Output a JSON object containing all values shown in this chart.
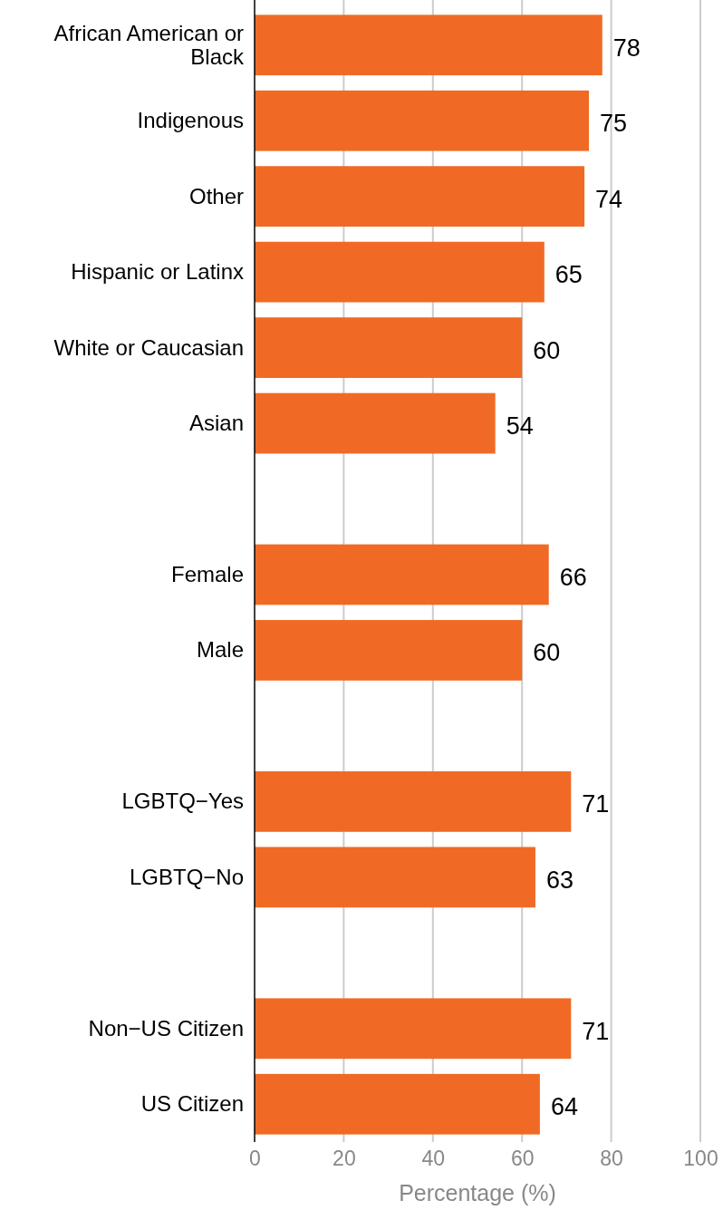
{
  "chart_data": {
    "type": "bar",
    "orientation": "horizontal",
    "xlabel": "Percentage (%)",
    "categories": [
      "African American or Black",
      "Indigenous",
      "Other",
      "Hispanic or Latinx",
      "White or Caucasian",
      "Asian",
      null,
      "Female",
      "Male",
      null,
      "LGBTQ−Yes",
      "LGBTQ−No",
      null,
      "Non−US Citizen",
      "US Citizen"
    ],
    "values": [
      78,
      75,
      74,
      65,
      60,
      54,
      null,
      66,
      60,
      null,
      71,
      63,
      null,
      71,
      64
    ],
    "color": "#f06a25",
    "xlim": [
      0,
      100
    ],
    "xticks": [
      0,
      20,
      40,
      60,
      80,
      100
    ],
    "grid": "x",
    "data_labels": true
  }
}
